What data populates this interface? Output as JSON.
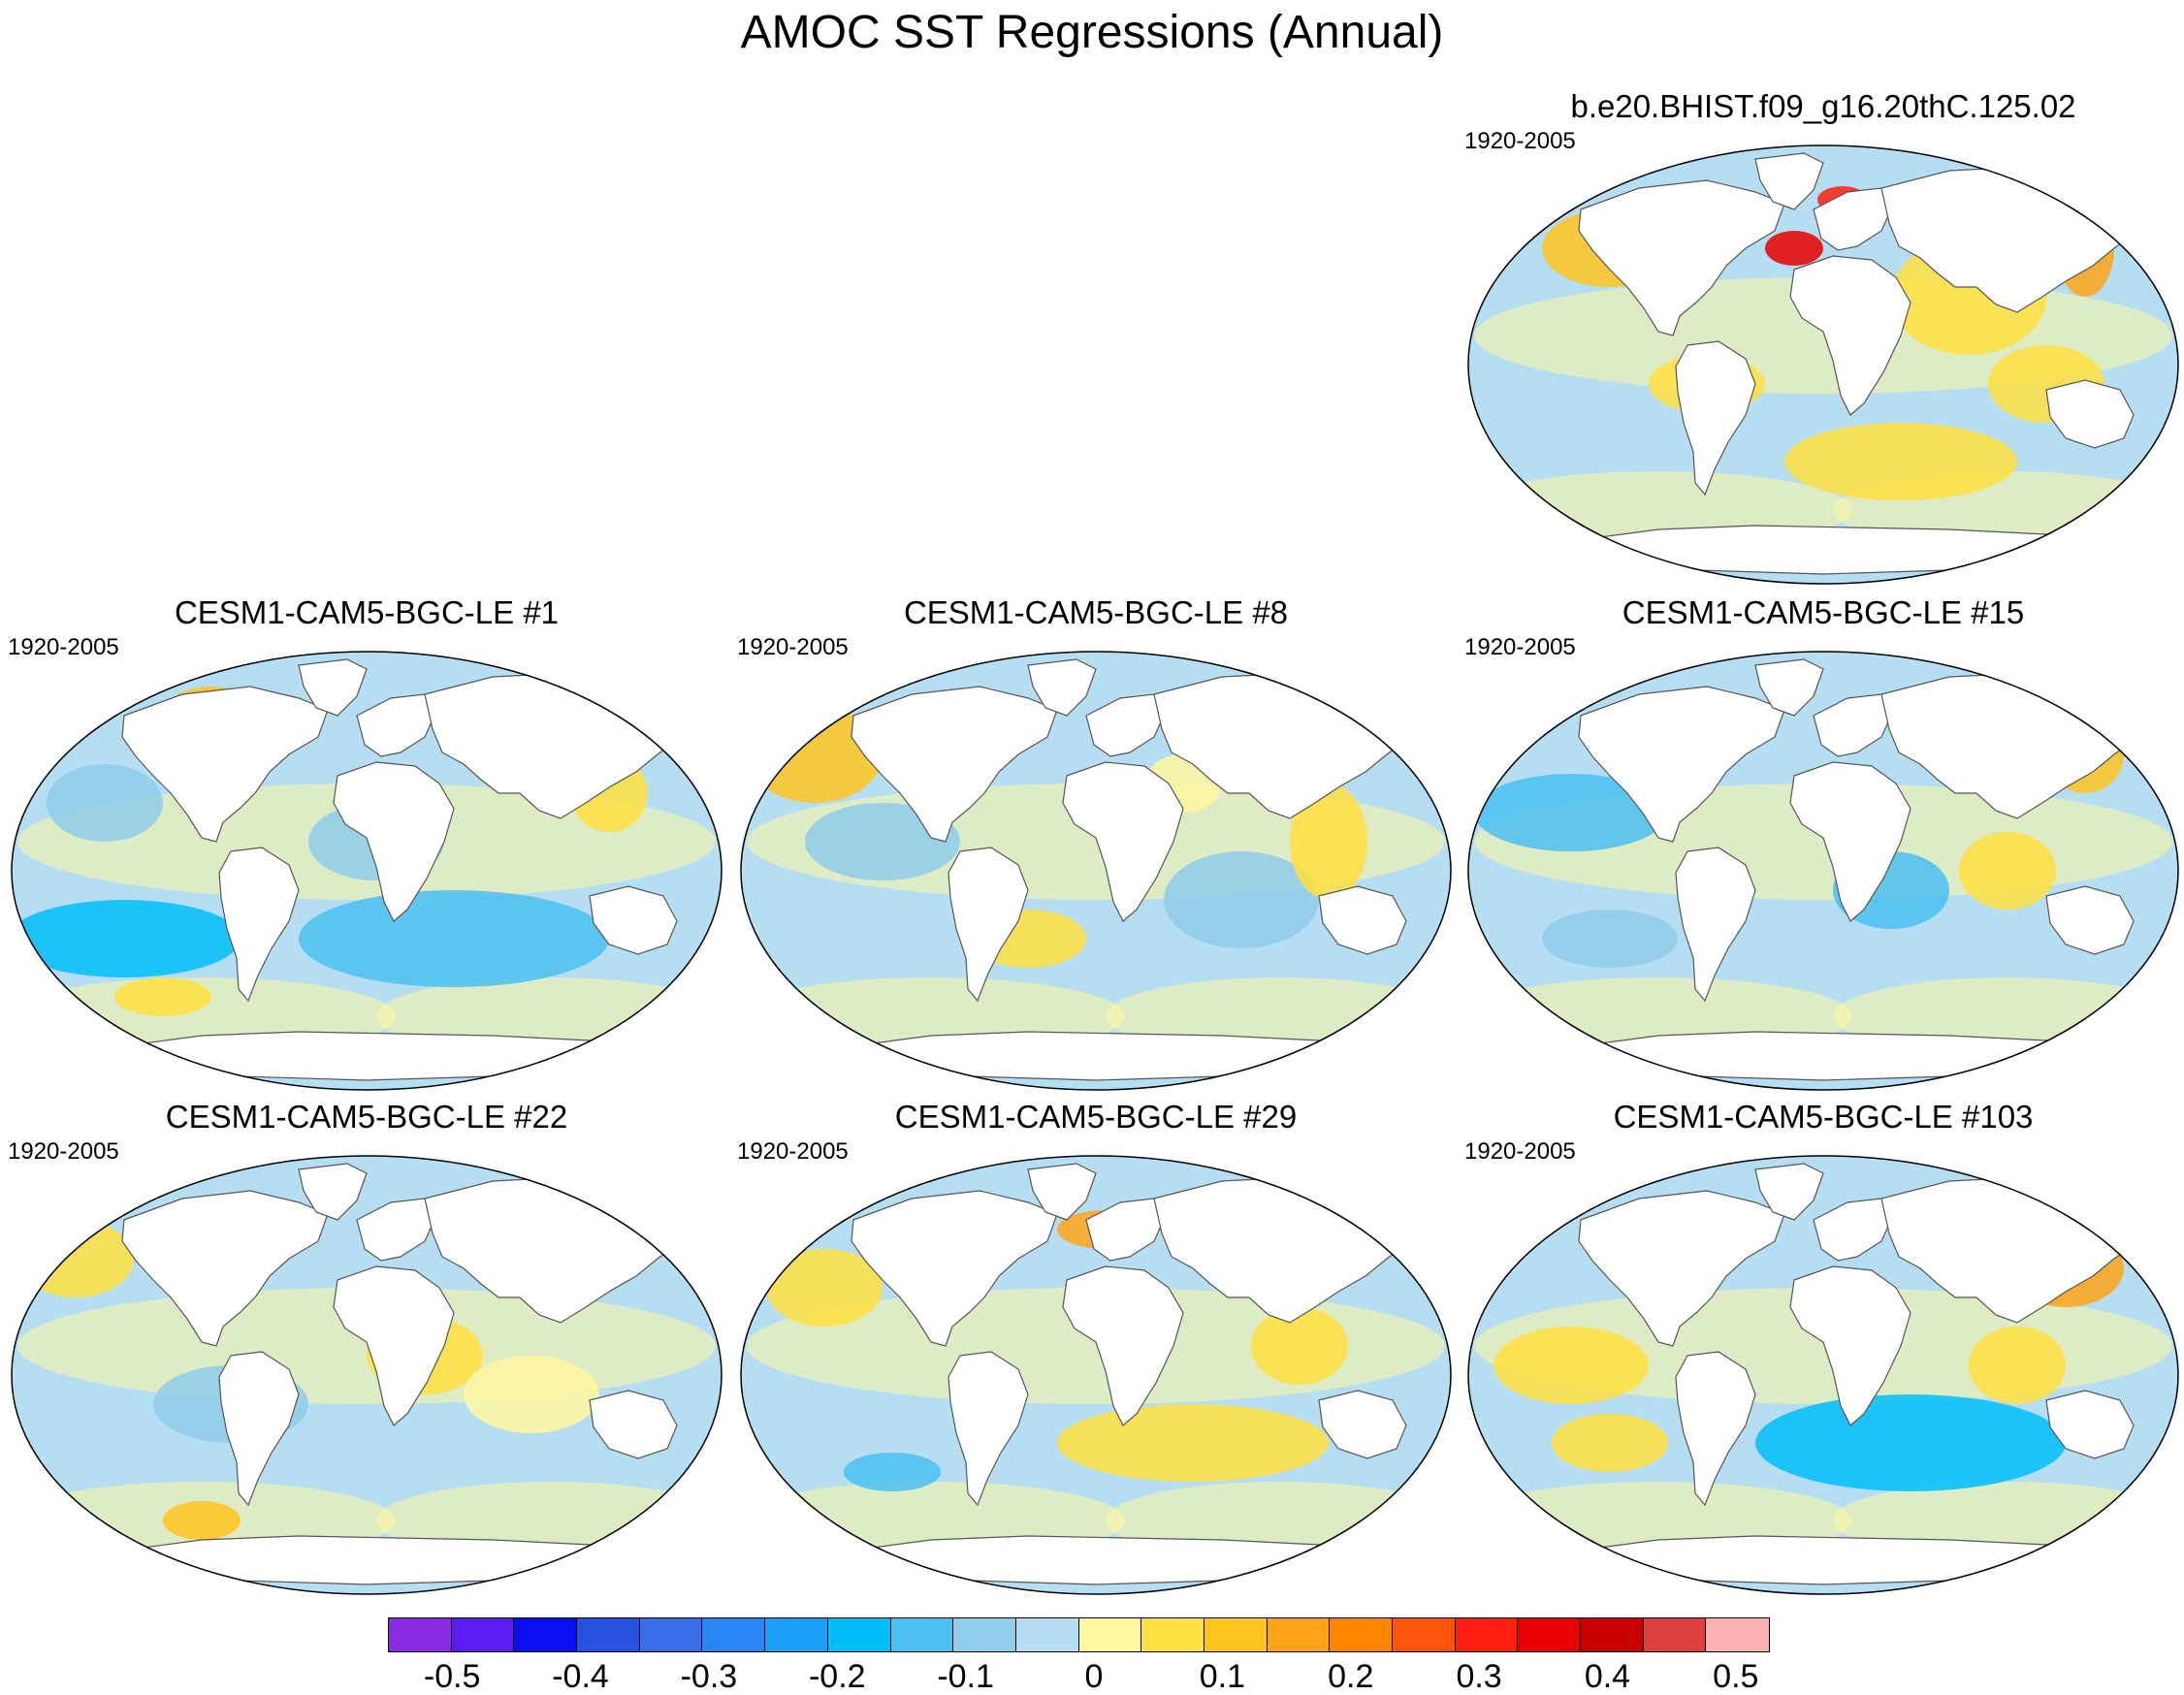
{
  "title": "AMOC SST Regressions (Annual)",
  "panels": [
    {
      "title": "b.e20.BHIST.f09_g16.20thC.125.02",
      "period": "1920-2005"
    },
    {
      "title": "CESM1-CAM5-BGC-LE #1",
      "period": "1920-2005"
    },
    {
      "title": "CESM1-CAM5-BGC-LE #8",
      "period": "1920-2005"
    },
    {
      "title": "CESM1-CAM5-BGC-LE #15",
      "period": "1920-2005"
    },
    {
      "title": "CESM1-CAM5-BGC-LE #22",
      "period": "1920-2005"
    },
    {
      "title": "CESM1-CAM5-BGC-LE #29",
      "period": "1920-2005"
    },
    {
      "title": "CESM1-CAM5-BGC-LE #103",
      "period": "1920-2005"
    }
  ],
  "colorbar": {
    "colors": [
      "#8a2be2",
      "#5a1cf0",
      "#0a10f0",
      "#2a52e0",
      "#3a6ee8",
      "#2a86f5",
      "#1aa0f8",
      "#00bef8",
      "#4cc0f0",
      "#8fcdea",
      "#b6def2",
      "#fff8a0",
      "#ffe040",
      "#ffc420",
      "#ffa418",
      "#ff8400",
      "#ff5410",
      "#ff2010",
      "#e80000",
      "#c80000",
      "#dc4040",
      "#ffb0b0"
    ],
    "labels": [
      "-0.5",
      "-0.4",
      "-0.3",
      "-0.2",
      "-0.1",
      "0",
      "0.1",
      "0.2",
      "0.3",
      "0.4",
      "0.5"
    ]
  },
  "colors": {
    "ocean_base": "#b6def2",
    "land": "#ffffff",
    "coast": "#555555"
  }
}
